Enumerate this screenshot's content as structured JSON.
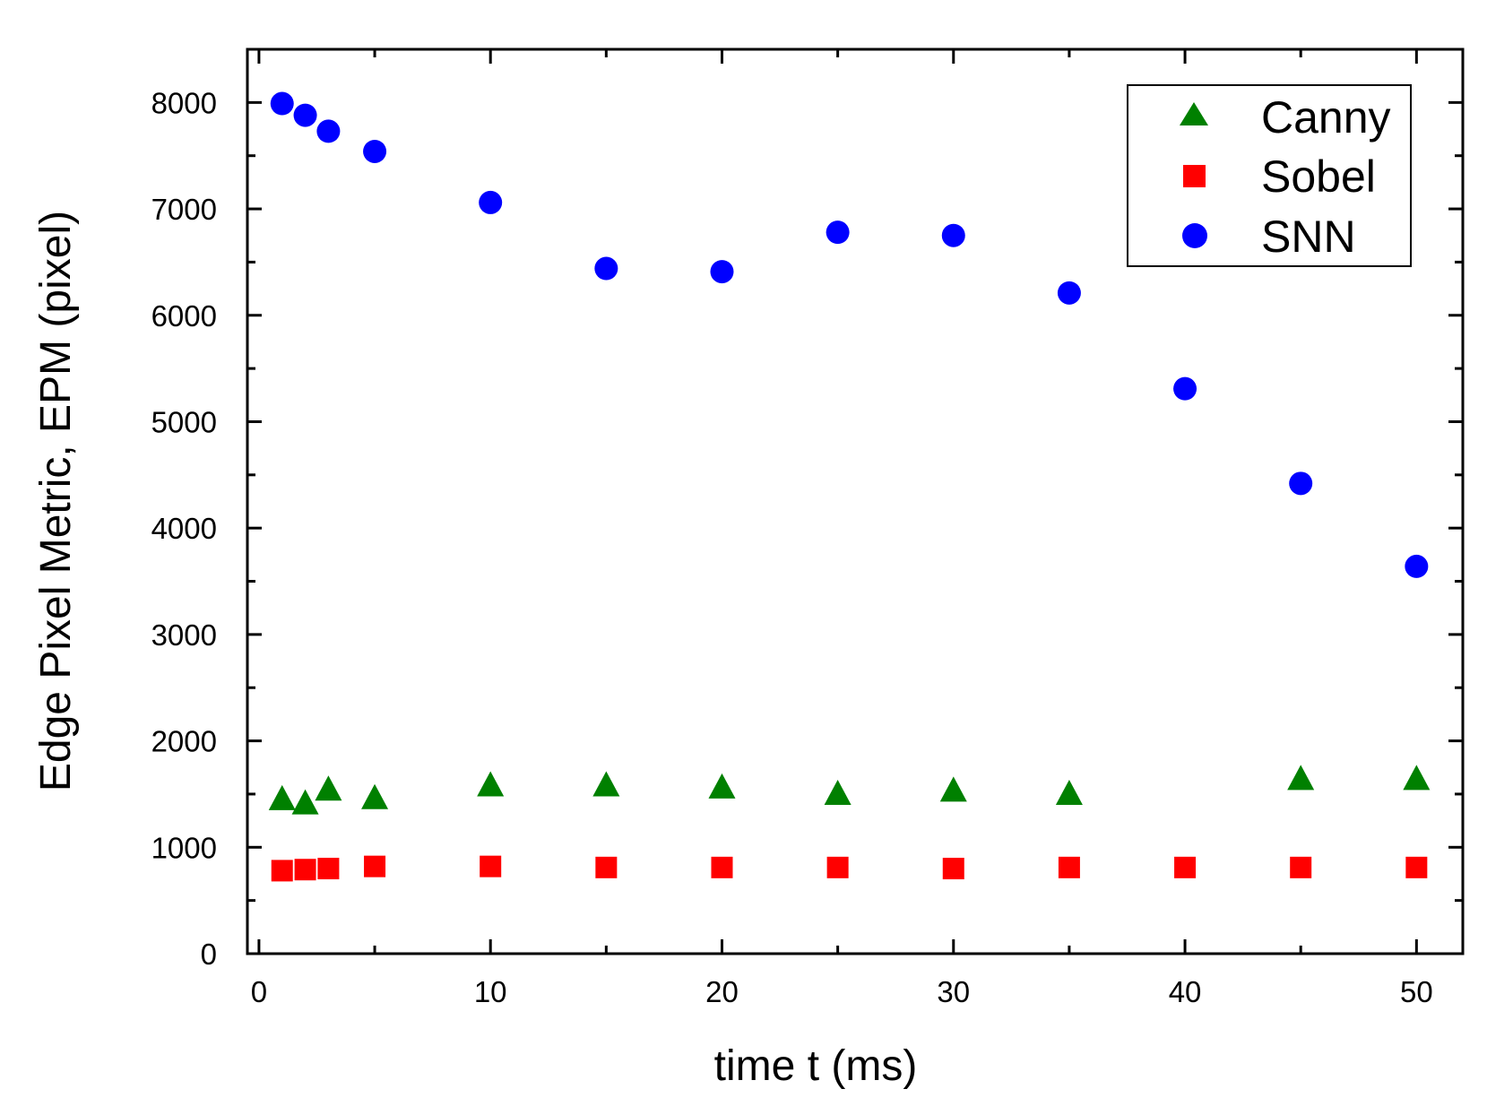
{
  "chart_data": {
    "type": "scatter",
    "title": "",
    "xlabel": "time t (ms)",
    "ylabel": "Edge Pixel Metric, EPM (pixel)",
    "xlim": [
      -0.5,
      52
    ],
    "ylim": [
      0,
      8500
    ],
    "x_ticks": [
      0,
      10,
      20,
      30,
      40,
      50
    ],
    "y_ticks": [
      0,
      1000,
      2000,
      3000,
      4000,
      5000,
      6000,
      7000,
      8000
    ],
    "legend_position": "top-right",
    "series": [
      {
        "name": "Canny",
        "marker": "triangle",
        "color": "#008000",
        "x": [
          1,
          2,
          3,
          5,
          10,
          15,
          20,
          25,
          30,
          35,
          45,
          50
        ],
        "y": [
          1450,
          1410,
          1540,
          1460,
          1580,
          1580,
          1560,
          1500,
          1530,
          1500,
          1640,
          1640
        ]
      },
      {
        "name": "Sobel",
        "marker": "square",
        "color": "#ff0000",
        "x": [
          1,
          2,
          3,
          5,
          10,
          15,
          20,
          25,
          30,
          35,
          40,
          45,
          50
        ],
        "y": [
          780,
          790,
          800,
          820,
          820,
          810,
          810,
          810,
          800,
          810,
          810,
          810,
          810
        ]
      },
      {
        "name": "SNN",
        "marker": "circle",
        "color": "#0000ff",
        "x": [
          1,
          2,
          3,
          5,
          10,
          15,
          20,
          25,
          30,
          35,
          40,
          45,
          50
        ],
        "y": [
          7990,
          7880,
          7730,
          7540,
          7060,
          6440,
          6410,
          6780,
          6750,
          6210,
          5310,
          4420,
          3640
        ]
      }
    ]
  }
}
